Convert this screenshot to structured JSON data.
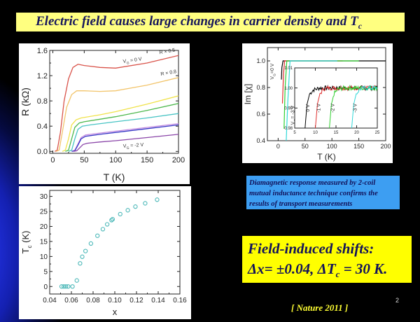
{
  "slide": {
    "title": "Electric field causes large changes in carrier density and T",
    "title_sub": "c",
    "note_box": "Diamagnetic response measured by 2-coil mutual inductance technique confirms the results of transport measurements",
    "shifts_heading": "Field-induced shifts:",
    "shifts_line_a": "Δx= ±0.04, ΔT",
    "shifts_line_sub": "c",
    "shifts_line_b": " = 30 K.",
    "page_number": "2",
    "citation": "[ Nature 2011 ]",
    "colors": {
      "title_bg": "#ffff80",
      "note_bg": "#3d9ef2",
      "shifts_bg": "#ffff00",
      "text_navy": "#12125a",
      "citation": "#ffff33"
    }
  },
  "chart_data": [
    {
      "type": "line",
      "xlabel": "T  (K)",
      "ylabel": "R  (kΩ)",
      "xlim": [
        -5,
        200
      ],
      "ylim": [
        -0.03,
        1.6
      ],
      "xticks": [
        "0",
        "50",
        "100",
        "150",
        "200"
      ],
      "xtick_values": [
        0,
        50,
        100,
        150,
        200
      ],
      "yticks": [
        "0.0",
        "0.4",
        "0.8",
        "1.2",
        "1.6"
      ],
      "ytick_values": [
        0,
        0.4,
        0.8,
        1.2,
        1.6
      ],
      "grid": false,
      "annotations": [
        {
          "main": "V",
          "sub": "G",
          "rest": " = 0 V",
          "x": 112,
          "y": 1.4
        },
        {
          "main": "R × 0.5",
          "sub": "",
          "rest": "",
          "x": 170,
          "y": 1.54
        },
        {
          "main": "R × 0.8",
          "sub": "",
          "rest": "",
          "x": 172,
          "y": 1.2
        },
        {
          "main": "V",
          "sub": "G",
          "rest": " = -2 V",
          "x": 112,
          "y": 0.06
        }
      ],
      "series": [
        {
          "color": "#d9534a",
          "points": [
            [
              3,
              0
            ],
            [
              7,
              0.02
            ],
            [
              12,
              0.3
            ],
            [
              18,
              0.8
            ],
            [
              25,
              1.15
            ],
            [
              32,
              1.33
            ],
            [
              40,
              1.38
            ],
            [
              50,
              1.36
            ],
            [
              75,
              1.33
            ],
            [
              100,
              1.32
            ],
            [
              150,
              1.4
            ],
            [
              200,
              1.52
            ]
          ]
        },
        {
          "color": "#f2c46a",
          "points": [
            [
              5,
              0
            ],
            [
              10,
              0.02
            ],
            [
              15,
              0.3
            ],
            [
              22,
              0.7
            ],
            [
              30,
              0.9
            ],
            [
              38,
              0.96
            ],
            [
              50,
              0.96
            ],
            [
              75,
              0.95
            ],
            [
              100,
              0.96
            ],
            [
              150,
              1.05
            ],
            [
              200,
              1.17
            ]
          ]
        },
        {
          "color": "#f0e24a",
          "points": [
            [
              15,
              0
            ],
            [
              20,
              0.02
            ],
            [
              25,
              0.2
            ],
            [
              30,
              0.42
            ],
            [
              37,
              0.5
            ],
            [
              45,
              0.53
            ],
            [
              75,
              0.58
            ],
            [
              100,
              0.63
            ],
            [
              150,
              0.75
            ],
            [
              200,
              0.88
            ]
          ]
        },
        {
          "color": "#4db84d",
          "points": [
            [
              20,
              0
            ],
            [
              25,
              0.02
            ],
            [
              30,
              0.2
            ],
            [
              35,
              0.38
            ],
            [
              42,
              0.45
            ],
            [
              50,
              0.47
            ],
            [
              75,
              0.51
            ],
            [
              100,
              0.55
            ],
            [
              150,
              0.65
            ],
            [
              200,
              0.76
            ]
          ]
        },
        {
          "color": "#48c4c4",
          "points": [
            [
              25,
              0
            ],
            [
              30,
              0.02
            ],
            [
              35,
              0.2
            ],
            [
              40,
              0.35
            ],
            [
              47,
              0.4
            ],
            [
              60,
              0.42
            ],
            [
              100,
              0.47
            ],
            [
              150,
              0.53
            ],
            [
              200,
              0.6
            ]
          ]
        },
        {
          "color": "#c48be0",
          "points": [
            [
              30,
              0
            ],
            [
              35,
              0.02
            ],
            [
              40,
              0.12
            ],
            [
              45,
              0.22
            ],
            [
              52,
              0.26
            ],
            [
              75,
              0.29
            ],
            [
              100,
              0.32
            ],
            [
              150,
              0.38
            ],
            [
              200,
              0.44
            ]
          ]
        },
        {
          "color": "#3434c4",
          "points": [
            [
              30,
              0
            ],
            [
              35,
              0.01
            ],
            [
              40,
              0.1
            ],
            [
              45,
              0.2
            ],
            [
              52,
              0.24
            ],
            [
              75,
              0.27
            ],
            [
              100,
              0.3
            ],
            [
              150,
              0.36
            ],
            [
              200,
              0.42
            ]
          ]
        },
        {
          "color": "#8a45a8",
          "points": [
            [
              33,
              0
            ],
            [
              38,
              0.01
            ],
            [
              43,
              0.06
            ],
            [
              48,
              0.11
            ],
            [
              55,
              0.13
            ],
            [
              75,
              0.15
            ],
            [
              100,
              0.17
            ],
            [
              150,
              0.22
            ],
            [
              200,
              0.27
            ]
          ]
        }
      ]
    },
    {
      "type": "line",
      "xlabel": "T  (K)",
      "ylabel": "Im [χ]",
      "xlim": [
        -20,
        200
      ],
      "ylim": [
        0.4,
        1.1
      ],
      "xticks": [
        "0",
        "50",
        "100",
        "150",
        "200"
      ],
      "xtick_values": [
        0,
        50,
        100,
        150,
        200
      ],
      "yticks": [
        "0.4",
        "0.6",
        "0.8",
        "1.0"
      ],
      "ytick_values": [
        0.4,
        0.6,
        0.8,
        1.0
      ],
      "grid": false,
      "annotations": [
        {
          "main": "V",
          "sub": "G",
          "rest": "=0 V",
          "x": -8,
          "y": 0.86
        },
        {
          "main": "V",
          "sub": "G",
          "rest": "= -3 V",
          "x": 30,
          "y": 0.52
        }
      ],
      "series": [
        {
          "color": "#000000",
          "points": [
            [
              6,
              0.86
            ],
            [
              7,
              0.95
            ],
            [
              9,
              1.0
            ],
            [
              200,
              1.0
            ]
          ]
        },
        {
          "color": "#e03030",
          "points": [
            [
              8,
              0.68
            ],
            [
              10,
              0.9
            ],
            [
              12,
              1.0
            ],
            [
              120,
              1.0
            ]
          ]
        },
        {
          "color": "#30d030",
          "points": [
            [
              11,
              0.49
            ],
            [
              13,
              0.8
            ],
            [
              16,
              1.0
            ],
            [
              150,
              1.0
            ]
          ]
        },
        {
          "color": "#30d8d8",
          "points": [
            [
              15,
              0.4
            ],
            [
              18,
              0.7
            ],
            [
              22,
              1.0
            ],
            [
              110,
              1.0
            ]
          ]
        }
      ],
      "inset": {
        "xlim": [
          5,
          25
        ],
        "ylim": [
          0.98,
          1.01
        ],
        "xticks": [
          "5",
          "10",
          "15",
          "20",
          "25"
        ],
        "xtick_values": [
          5,
          10,
          15,
          20,
          25
        ],
        "yticks": [
          "0.98",
          "0.99",
          "1.00",
          "1.01"
        ],
        "ytick_values": [
          0.98,
          0.99,
          1.0,
          1.01
        ],
        "labels": [
          {
            "text": "0 V",
            "x": 8.6,
            "y": 0.99
          },
          {
            "text": "-1 V",
            "x": 11.2,
            "y": 0.99
          },
          {
            "text": "-2 V",
            "x": 14.6,
            "y": 0.99
          },
          {
            "text": "-3 V",
            "x": 20.0,
            "y": 0.99
          }
        ],
        "series": [
          {
            "color": "#000000",
            "points": [
              [
                7.5,
                0.98
              ],
              [
                8,
                0.992
              ],
              [
                8.6,
                0.997
              ],
              [
                9.5,
                0.999
              ],
              [
                11,
                1.0
              ],
              [
                25,
                1.0
              ]
            ]
          },
          {
            "color": "#e03030",
            "points": [
              [
                10,
                0.98
              ],
              [
                10.5,
                0.992
              ],
              [
                11.1,
                0.997
              ],
              [
                12,
                0.9995
              ],
              [
                13,
                1.0
              ],
              [
                25,
                1.0
              ]
            ]
          },
          {
            "color": "#30d030",
            "points": [
              [
                13.4,
                0.98
              ],
              [
                13.9,
                0.992
              ],
              [
                14.5,
                0.997
              ],
              [
                15.5,
                0.9995
              ],
              [
                17,
                1.0
              ],
              [
                25,
                1.0
              ]
            ]
          },
          {
            "color": "#30d8d8",
            "points": [
              [
                18.8,
                0.98
              ],
              [
                19.3,
                0.992
              ],
              [
                19.9,
                0.997
              ],
              [
                20.8,
                0.9995
              ],
              [
                22,
                1.0
              ],
              [
                25,
                1.0
              ]
            ]
          }
        ]
      }
    },
    {
      "type": "scatter",
      "xlabel": "x",
      "ylabel": "T",
      "ylabel_sub": "c",
      "ylabel_rest": "  (K)",
      "xlim": [
        0.04,
        0.16
      ],
      "ylim": [
        -2.5,
        32
      ],
      "xticks": [
        "0.04",
        "0.06",
        "0.08",
        "0.10",
        "0.12",
        "0.14",
        "0.16"
      ],
      "xtick_values": [
        0.04,
        0.06,
        0.08,
        0.1,
        0.12,
        0.14,
        0.16
      ],
      "yticks": [
        "0",
        "5",
        "10",
        "15",
        "20",
        "25",
        "30"
      ],
      "ytick_values": [
        0,
        5,
        10,
        15,
        20,
        25,
        30
      ],
      "grid": false,
      "marker_color": "#4bb8b8",
      "points": [
        [
          0.051,
          0
        ],
        [
          0.053,
          0
        ],
        [
          0.055,
          0
        ],
        [
          0.057,
          0
        ],
        [
          0.061,
          0
        ],
        [
          0.065,
          2
        ],
        [
          0.068,
          7.7
        ],
        [
          0.07,
          9.9
        ],
        [
          0.073,
          11.8
        ],
        [
          0.078,
          14.3
        ],
        [
          0.084,
          16.9
        ],
        [
          0.089,
          19.1
        ],
        [
          0.093,
          20.7
        ],
        [
          0.097,
          22.1
        ],
        [
          0.098,
          22.4
        ],
        [
          0.105,
          24.1
        ],
        [
          0.112,
          25.4
        ],
        [
          0.119,
          26.6
        ],
        [
          0.128,
          27.7
        ],
        [
          0.139,
          28.9
        ]
      ]
    }
  ]
}
